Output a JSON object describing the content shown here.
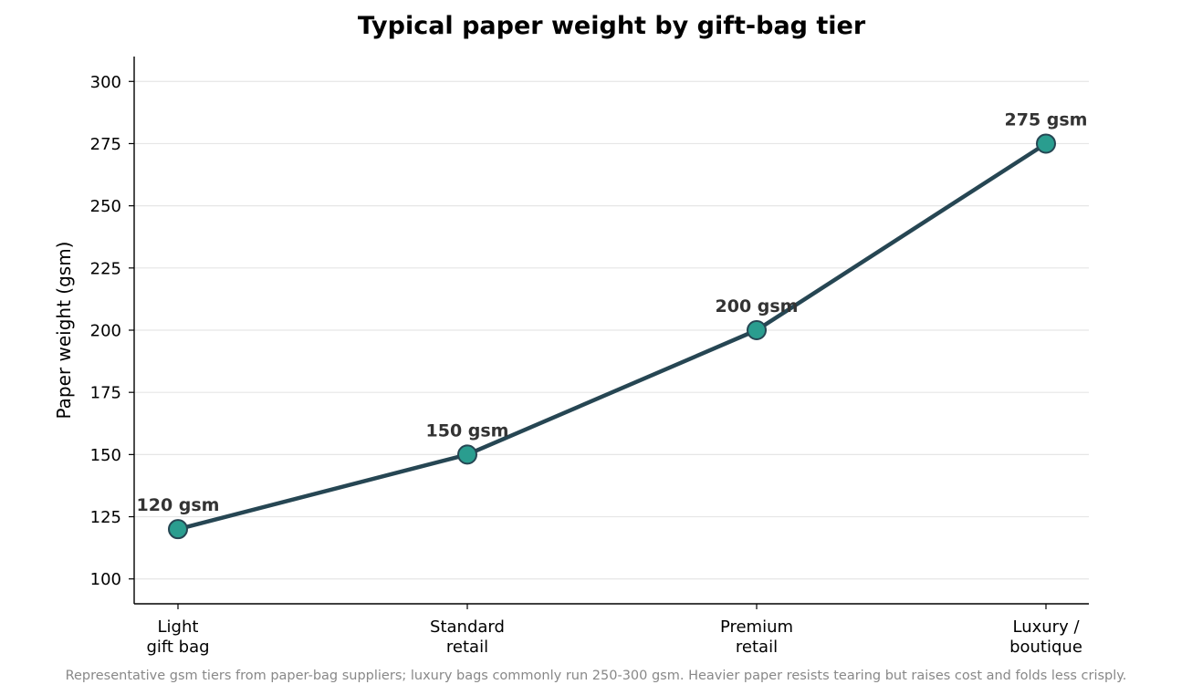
{
  "chart_data": {
    "type": "line",
    "title": "Typical paper weight by gift-bag tier",
    "xlabel": "",
    "ylabel": "Paper weight (gsm)",
    "categories": [
      [
        "Light",
        "gift bag"
      ],
      [
        "Standard",
        "retail"
      ],
      [
        "Premium",
        "retail"
      ],
      [
        "Luxury /",
        "boutique"
      ]
    ],
    "values": [
      120,
      150,
      200,
      275
    ],
    "data_labels": [
      "120 gsm",
      "150 gsm",
      "200 gsm",
      "275 gsm"
    ],
    "yticks": [
      100,
      125,
      150,
      175,
      200,
      225,
      250,
      275,
      300
    ],
    "ylim": [
      90,
      310
    ],
    "grid": "horizontal",
    "line_color": "#264653",
    "marker_color": "#2a9d8f",
    "caption": "Representative gsm tiers from paper-bag suppliers; luxury bags commonly run 250-300 gsm. Heavier paper resists tearing but raises cost and folds less crisply."
  }
}
